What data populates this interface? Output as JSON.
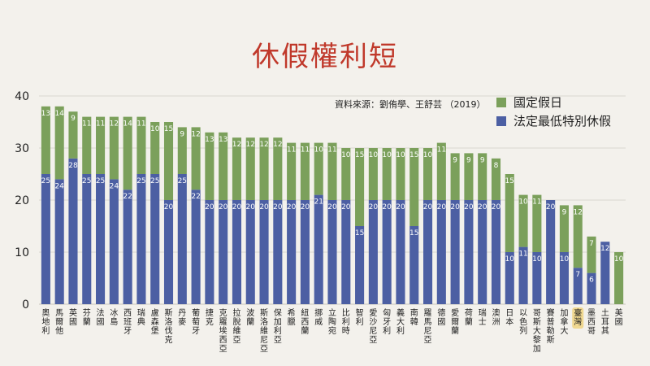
{
  "title": "休假權利短",
  "source": "資料來源：劉侑學、王舒芸 （2019）",
  "colors": {
    "holiday": "#7ba05b",
    "statutory": "#4c5fa3",
    "highlight": "#f0d890"
  },
  "chart_data": {
    "type": "bar",
    "stacked": true,
    "categories": [
      "奧地利",
      "馬爾他",
      "英國",
      "芬蘭",
      "法國",
      "冰島",
      "西班牙",
      "瑞典",
      "盧森堡",
      "斯洛伐克",
      "丹麥",
      "葡萄牙",
      "捷克",
      "克羅埃西亞",
      "拉脫維亞",
      "波蘭",
      "斯洛維尼亞",
      "保加利亞",
      "希臘",
      "紐西蘭",
      "挪威",
      "立陶宛",
      "比利時",
      "智利",
      "愛沙尼亞",
      "匈牙利",
      "義大利",
      "南韓",
      "羅馬尼亞",
      "德國",
      "愛爾蘭",
      "荷蘭",
      "瑞士",
      "澳洲",
      "日本",
      "以色列",
      "哥斯大黎加",
      "賽普勒斯",
      "加拿大",
      "臺灣",
      "墨西哥",
      "土耳其",
      "美國"
    ],
    "series": [
      {
        "name": "法定最低特別休假",
        "values": [
          25,
          24,
          28,
          25,
          25,
          24,
          22,
          25,
          25,
          20,
          25,
          22,
          20,
          20,
          20,
          20,
          20,
          20,
          20,
          20,
          21,
          20,
          20,
          15,
          20,
          20,
          20,
          15,
          20,
          20,
          20,
          20,
          20,
          20,
          10,
          11,
          10,
          20,
          10,
          7,
          6,
          12,
          0
        ]
      },
      {
        "name": "國定假日",
        "values": [
          13,
          14,
          9,
          11,
          11,
          12,
          14,
          11,
          10,
          15,
          9,
          12,
          13,
          13,
          12,
          12,
          12,
          12,
          11,
          11,
          10,
          11,
          10,
          15,
          10,
          10,
          10,
          15,
          10,
          11,
          9,
          9,
          9,
          8,
          15,
          10,
          11,
          0,
          9,
          12,
          7,
          0,
          10
        ]
      }
    ],
    "ylim": [
      0,
      40
    ],
    "yticks": [
      0,
      10,
      20,
      30,
      40
    ],
    "highlight_category": "臺灣",
    "legend_position": "top-right"
  }
}
